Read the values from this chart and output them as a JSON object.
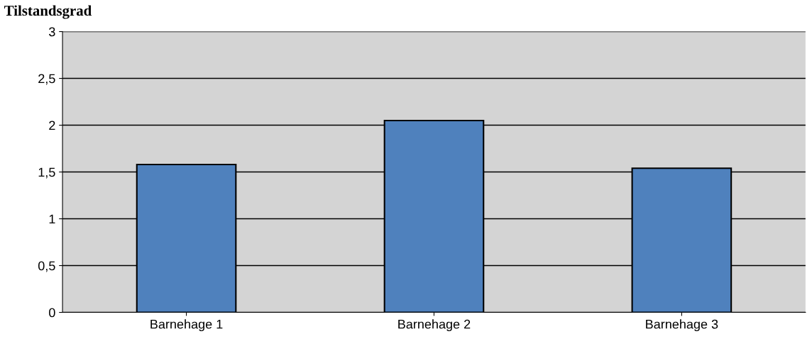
{
  "chart_data": {
    "type": "bar",
    "title": "Tilstandsgrad",
    "categories": [
      "Barnehage 1",
      "Barnehage 2",
      "Barnehage 3"
    ],
    "values": [
      1.58,
      2.05,
      1.54
    ],
    "color": "#4f81bd",
    "ylim": [
      0,
      3
    ],
    "yticks": [
      0,
      {
        "value": 0.5,
        "label": "0,5"
      },
      1,
      {
        "value": 1.5,
        "label": "1,5"
      },
      2,
      {
        "value": 2.5,
        "label": "2,5"
      },
      3
    ],
    "grid": "y"
  }
}
